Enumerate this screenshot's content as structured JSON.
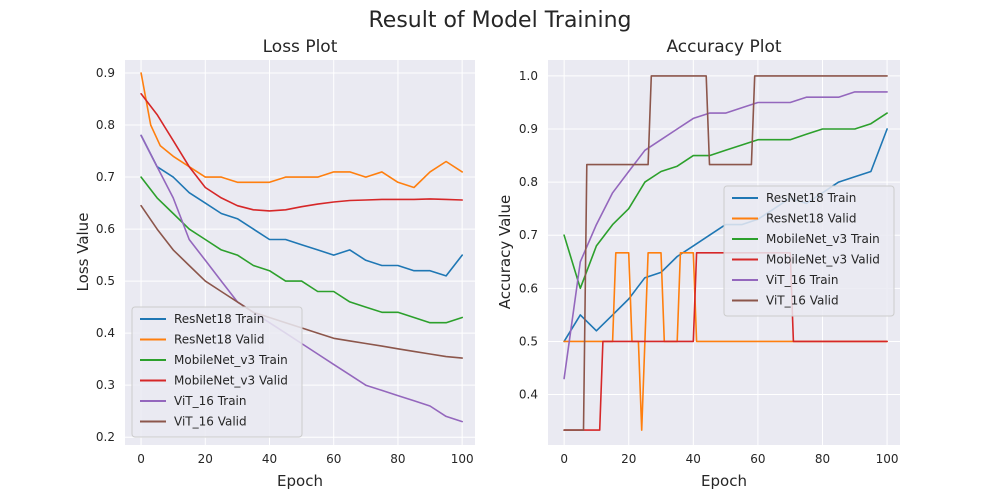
{
  "figure": {
    "title": "Result of Model Training"
  },
  "colors": {
    "resnet_train": "#1f77b4",
    "resnet_valid": "#ff7f0e",
    "mobilenet_train": "#2ca02c",
    "mobilenet_valid": "#d62728",
    "vit_train": "#9467bd",
    "vit_valid": "#8c564b"
  },
  "chart_data": [
    {
      "type": "line",
      "title": "Loss Plot",
      "xlabel": "Epoch",
      "ylabel": "Loss Value",
      "xlim": [
        -5,
        104
      ],
      "ylim": [
        0.185,
        0.925
      ],
      "xticks": [
        0,
        20,
        40,
        60,
        80,
        100
      ],
      "yticks": [
        0.2,
        0.3,
        0.4,
        0.5,
        0.6,
        0.7,
        0.8,
        0.9
      ],
      "ytick_labels": [
        "0.2",
        "0.3",
        "0.4",
        "0.5",
        "0.6",
        "0.7",
        "0.8",
        "0.9"
      ],
      "grid": true,
      "legend_position": "lower-left",
      "series": [
        {
          "name": "ResNet18 Train",
          "color_key": "resnet_train",
          "x": [
            0,
            5,
            10,
            15,
            20,
            25,
            30,
            35,
            40,
            45,
            50,
            55,
            60,
            65,
            70,
            75,
            80,
            85,
            90,
            95,
            100
          ],
          "y": [
            0.78,
            0.72,
            0.7,
            0.67,
            0.65,
            0.63,
            0.62,
            0.6,
            0.58,
            0.58,
            0.57,
            0.56,
            0.55,
            0.56,
            0.54,
            0.53,
            0.53,
            0.52,
            0.52,
            0.51,
            0.55
          ]
        },
        {
          "name": "ResNet18 Valid",
          "color_key": "resnet_valid",
          "x": [
            0,
            3,
            6,
            10,
            15,
            20,
            25,
            30,
            35,
            40,
            45,
            50,
            55,
            60,
            65,
            70,
            75,
            80,
            85,
            90,
            95,
            100
          ],
          "y": [
            0.9,
            0.8,
            0.76,
            0.74,
            0.72,
            0.7,
            0.7,
            0.69,
            0.69,
            0.69,
            0.7,
            0.7,
            0.7,
            0.71,
            0.71,
            0.7,
            0.71,
            0.69,
            0.68,
            0.71,
            0.73,
            0.71
          ]
        },
        {
          "name": "MobileNet_v3 Train",
          "color_key": "mobilenet_train",
          "x": [
            0,
            5,
            10,
            15,
            20,
            25,
            30,
            35,
            40,
            45,
            50,
            55,
            60,
            65,
            70,
            75,
            80,
            85,
            90,
            95,
            100
          ],
          "y": [
            0.7,
            0.66,
            0.63,
            0.6,
            0.58,
            0.56,
            0.55,
            0.53,
            0.52,
            0.5,
            0.5,
            0.48,
            0.48,
            0.46,
            0.45,
            0.44,
            0.44,
            0.43,
            0.42,
            0.42,
            0.43
          ]
        },
        {
          "name": "MobileNet_v3 Valid",
          "color_key": "mobilenet_valid",
          "x": [
            0,
            5,
            10,
            15,
            20,
            25,
            30,
            35,
            40,
            45,
            50,
            55,
            60,
            65,
            70,
            75,
            80,
            85,
            90,
            95,
            100
          ],
          "y": [
            0.86,
            0.82,
            0.77,
            0.72,
            0.68,
            0.66,
            0.645,
            0.637,
            0.635,
            0.637,
            0.643,
            0.648,
            0.652,
            0.655,
            0.656,
            0.657,
            0.657,
            0.657,
            0.658,
            0.657,
            0.656
          ]
        },
        {
          "name": "ViT_16 Train",
          "color_key": "vit_train",
          "x": [
            0,
            5,
            10,
            15,
            20,
            25,
            30,
            35,
            40,
            45,
            50,
            55,
            60,
            65,
            70,
            75,
            80,
            85,
            90,
            95,
            100
          ],
          "y": [
            0.78,
            0.72,
            0.66,
            0.58,
            0.54,
            0.5,
            0.46,
            0.44,
            0.42,
            0.4,
            0.38,
            0.36,
            0.34,
            0.32,
            0.3,
            0.29,
            0.28,
            0.27,
            0.26,
            0.24,
            0.23
          ]
        },
        {
          "name": "ViT_16 Valid",
          "color_key": "vit_valid",
          "x": [
            0,
            5,
            10,
            15,
            20,
            25,
            30,
            35,
            40,
            45,
            50,
            55,
            60,
            65,
            70,
            75,
            80,
            85,
            90,
            95,
            100
          ],
          "y": [
            0.645,
            0.6,
            0.56,
            0.53,
            0.5,
            0.48,
            0.46,
            0.44,
            0.43,
            0.42,
            0.41,
            0.4,
            0.39,
            0.385,
            0.38,
            0.375,
            0.37,
            0.365,
            0.36,
            0.355,
            0.352
          ]
        }
      ]
    },
    {
      "type": "line",
      "title": "Accuracy Plot",
      "xlabel": "Epoch",
      "ylabel": "Accuracy Value",
      "xlim": [
        -5,
        104
      ],
      "ylim": [
        0.305,
        1.03
      ],
      "xticks": [
        0,
        20,
        40,
        60,
        80,
        100
      ],
      "yticks": [
        0.4,
        0.5,
        0.6,
        0.7,
        0.8,
        0.9,
        1.0
      ],
      "ytick_labels": [
        "0.4",
        "0.5",
        "0.6",
        "0.7",
        "0.8",
        "0.9",
        "1.0"
      ],
      "grid": true,
      "legend_position": "center-right",
      "series": [
        {
          "name": "ResNet18 Train",
          "color_key": "resnet_train",
          "x": [
            0,
            5,
            10,
            15,
            20,
            25,
            30,
            35,
            40,
            45,
            50,
            55,
            60,
            65,
            70,
            75,
            80,
            85,
            90,
            95,
            100
          ],
          "y": [
            0.5,
            0.55,
            0.52,
            0.55,
            0.58,
            0.62,
            0.63,
            0.66,
            0.68,
            0.7,
            0.72,
            0.72,
            0.73,
            0.75,
            0.77,
            0.76,
            0.78,
            0.8,
            0.81,
            0.82,
            0.9
          ]
        },
        {
          "name": "ResNet18 Valid",
          "color_key": "resnet_valid",
          "x": [
            0,
            15,
            16,
            20,
            21,
            23,
            24,
            25,
            26,
            30,
            31,
            35,
            36,
            40,
            41,
            100
          ],
          "y": [
            0.5,
            0.5,
            0.667,
            0.667,
            0.5,
            0.5,
            0.333,
            0.5,
            0.667,
            0.667,
            0.5,
            0.5,
            0.667,
            0.667,
            0.5,
            0.5
          ]
        },
        {
          "name": "MobileNet_v3 Train",
          "color_key": "mobilenet_train",
          "x": [
            0,
            5,
            10,
            15,
            20,
            25,
            30,
            35,
            40,
            45,
            50,
            55,
            60,
            65,
            70,
            75,
            80,
            85,
            90,
            95,
            100
          ],
          "y": [
            0.7,
            0.6,
            0.68,
            0.72,
            0.75,
            0.8,
            0.82,
            0.83,
            0.85,
            0.85,
            0.86,
            0.87,
            0.88,
            0.88,
            0.88,
            0.89,
            0.9,
            0.9,
            0.9,
            0.91,
            0.93
          ]
        },
        {
          "name": "MobileNet_v3 Valid",
          "color_key": "mobilenet_valid",
          "x": [
            0,
            11,
            12,
            40,
            41,
            70,
            71,
            100
          ],
          "y": [
            0.333,
            0.333,
            0.5,
            0.5,
            0.667,
            0.667,
            0.5,
            0.5
          ]
        },
        {
          "name": "ViT_16 Train",
          "color_key": "vit_train",
          "x": [
            0,
            5,
            10,
            15,
            20,
            25,
            30,
            35,
            40,
            45,
            50,
            55,
            60,
            65,
            70,
            75,
            80,
            85,
            90,
            95,
            100
          ],
          "y": [
            0.43,
            0.65,
            0.72,
            0.78,
            0.82,
            0.86,
            0.88,
            0.9,
            0.92,
            0.93,
            0.93,
            0.94,
            0.95,
            0.95,
            0.95,
            0.96,
            0.96,
            0.96,
            0.97,
            0.97,
            0.97
          ]
        },
        {
          "name": "ViT_16 Valid",
          "color_key": "vit_valid",
          "x": [
            0,
            6,
            7,
            10,
            11,
            26,
            27,
            44,
            45,
            58,
            59,
            100
          ],
          "y": [
            0.333,
            0.333,
            0.833,
            0.833,
            0.833,
            0.833,
            1.0,
            1.0,
            0.833,
            0.833,
            1.0,
            1.0
          ]
        }
      ]
    }
  ]
}
